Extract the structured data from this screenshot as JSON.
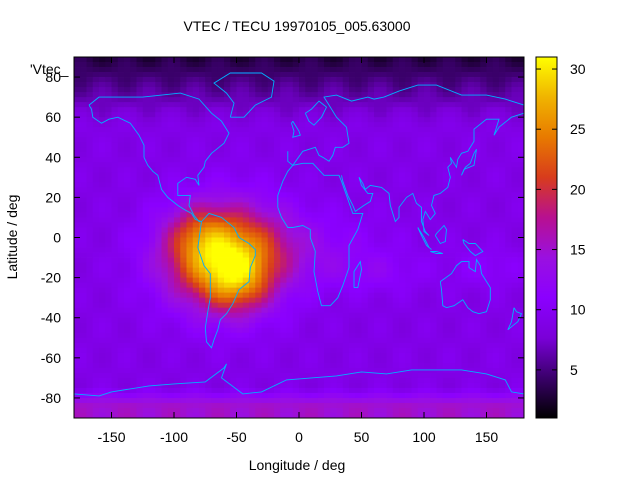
{
  "chart_data": {
    "type": "heatmap",
    "title": "VTEC / TECU 19970105_005.63000",
    "xlabel": "Longitude / deg",
    "ylabel": "Latitude / deg",
    "series_key": "'Vtec_",
    "xlim": [
      -180,
      180
    ],
    "ylim": [
      -90,
      90
    ],
    "xticks": [
      -150,
      -100,
      -50,
      0,
      50,
      100,
      150
    ],
    "yticks": [
      -80,
      -60,
      -40,
      -20,
      0,
      20,
      40,
      60,
      80
    ],
    "colorbar": {
      "range": [
        1,
        31
      ],
      "ticks": [
        5,
        10,
        15,
        20,
        25,
        30
      ],
      "colormap": [
        "#000000",
        "#3a006a",
        "#7a00d8",
        "#8b00ff",
        "#9a10e0",
        "#b81090",
        "#d83c1c",
        "#e87a00",
        "#f0b400",
        "#ffff00"
      ]
    },
    "tec_field": {
      "background": 9,
      "polar_north_floor": 3,
      "south_band": {
        "value": 15,
        "lat_below": -75
      },
      "blobs": [
        {
          "lon": -65,
          "lat": -10,
          "sx": 45,
          "sy": 24,
          "amp": 16
        },
        {
          "lon": -50,
          "lat": -22,
          "sx": 26,
          "sy": 16,
          "amp": 7
        },
        {
          "lon": -80,
          "lat": 2,
          "sx": 22,
          "sy": 14,
          "amp": 4
        },
        {
          "lon": -40,
          "lat": -8,
          "sx": 40,
          "sy": 30,
          "amp": 3
        },
        {
          "lon": 0,
          "lat": -5,
          "sx": 70,
          "sy": 18,
          "amp": 3
        },
        {
          "lon": 60,
          "lat": -18,
          "sx": 40,
          "sy": 10,
          "amp": 2
        },
        {
          "lon": 150,
          "lat": -15,
          "sx": 30,
          "sy": 10,
          "amp": 2
        }
      ]
    },
    "coastlines_note": "world continental outlines"
  },
  "colors": {
    "coastline": "#00b0ff",
    "axis": "#000000"
  }
}
